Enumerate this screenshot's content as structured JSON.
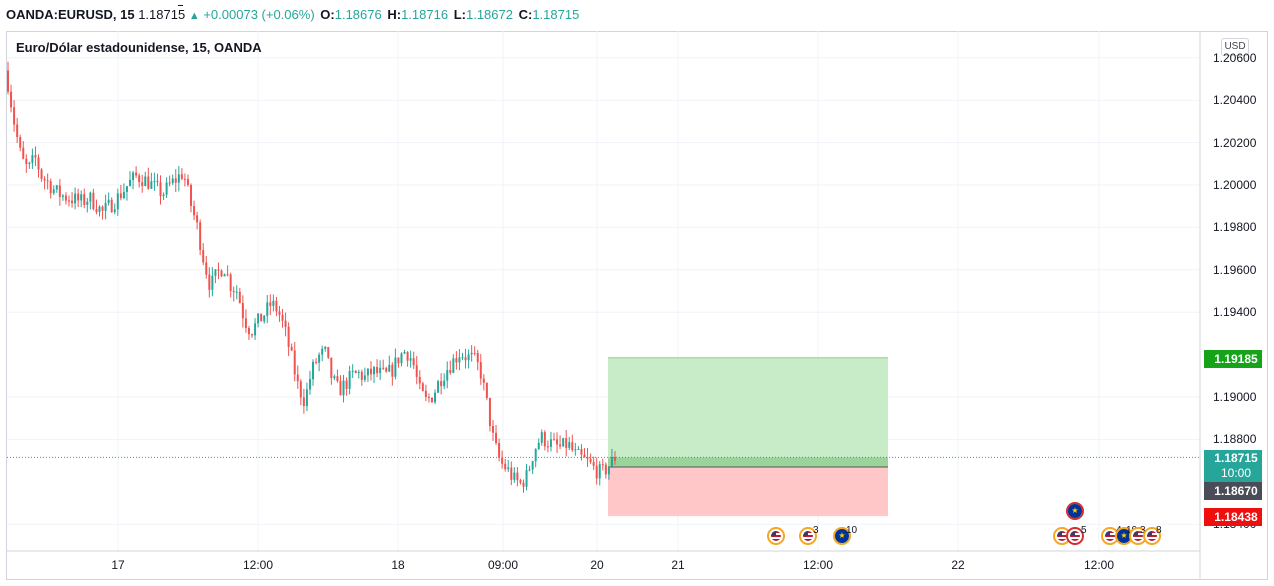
{
  "header": {
    "symbol": "OANDA:EURUSD, 15",
    "last": "1.18715",
    "up_arrow": "▲",
    "change": "+0.00073 (+0.06%)",
    "o_label": "O:",
    "o_value": "1.18676",
    "h_label": "H:",
    "h_value": "1.18716",
    "l_label": "L:",
    "l_value": "1.18672",
    "c_label": "C:",
    "c_value": "1.18715"
  },
  "legend": {
    "title": "Euro/Dólar estadounidense, 15, OANDA"
  },
  "currency_button": "USD",
  "price_tags": {
    "target": "1.19185",
    "current": "1.18715",
    "countdown": "10:00",
    "entry": "1.18670",
    "stop": "1.18438"
  },
  "y_axis_ticks": [
    "1.20600",
    "1.20400",
    "1.20200",
    "1.20000",
    "1.19800",
    "1.19600",
    "1.19400",
    "1.19000",
    "1.18800",
    "1.18400"
  ],
  "x_axis_ticks": [
    "17",
    "12:00",
    "18",
    "09:00",
    "20",
    "21",
    "12:00",
    "22",
    "12:00"
  ],
  "events": [
    {
      "icon": "us-flag-icon",
      "count": ""
    },
    {
      "icon": "us-flag-icon",
      "count": "3"
    },
    {
      "icon": "eu-flag-icon",
      "count": "10"
    },
    {
      "icon": "eu-flag-icon",
      "count": ""
    },
    {
      "icon": "us-flag-icon",
      "count": ""
    },
    {
      "icon": "us-flag-icon",
      "count": "5"
    },
    {
      "icon": "us-flag-icon",
      "count": "4"
    },
    {
      "icon": "eu-flag-icon",
      "count": "10"
    },
    {
      "icon": "us-flag-icon",
      "count": "3"
    },
    {
      "icon": "us-flag-icon",
      "count": "8"
    }
  ],
  "colors": {
    "up": "#26a69a",
    "down": "#ef5350",
    "profit_zone": "#c8ebc8",
    "loss_zone": "#ffc7c7",
    "target_tag": "#16a31a",
    "stop_tag": "#f00f0f",
    "entry_tag": "#4a4d57"
  },
  "chart_data": {
    "type": "candlestick",
    "symbol": "EURUSD",
    "interval": "15",
    "ylim": [
      1.1835,
      1.2068
    ],
    "close_path": [
      1.2048,
      1.2028,
      1.2012,
      1.2007,
      1.2013,
      1.2004,
      1.2001,
      1.1997,
      1.1995,
      1.1994,
      1.1993,
      1.1992,
      1.1994,
      1.1991,
      1.1987,
      1.199,
      1.1993,
      1.1997,
      1.2001,
      1.2004,
      1.2003,
      1.2001,
      1.1998,
      1.1996,
      1.2,
      1.2003,
      1.2006,
      1.1992,
      1.1981,
      1.1965,
      1.1952,
      1.1958,
      1.1962,
      1.1953,
      1.195,
      1.1937,
      1.1931,
      1.1935,
      1.1939,
      1.1944,
      1.1941,
      1.1932,
      1.1919,
      1.1905,
      1.1898,
      1.1912,
      1.1919,
      1.1921,
      1.1909,
      1.1903,
      1.1906,
      1.191,
      1.1911,
      1.1909,
      1.1912,
      1.1911,
      1.191,
      1.1913,
      1.1919,
      1.1922,
      1.1917,
      1.1903,
      1.1898,
      1.1901,
      1.1908,
      1.1913,
      1.1917,
      1.1921,
      1.1919,
      1.1918,
      1.1913,
      1.1897,
      1.1879,
      1.1869,
      1.1866,
      1.1861,
      1.1859,
      1.1863,
      1.1875,
      1.1881,
      1.1879,
      1.1877,
      1.1876,
      1.1878,
      1.1873,
      1.1871,
      1.1869,
      1.1866,
      1.1864,
      1.1867,
      1.18715
    ],
    "position": {
      "type": "long",
      "entry": 1.1867,
      "target": 1.19185,
      "stop": 1.18438,
      "current": 1.18715
    }
  }
}
